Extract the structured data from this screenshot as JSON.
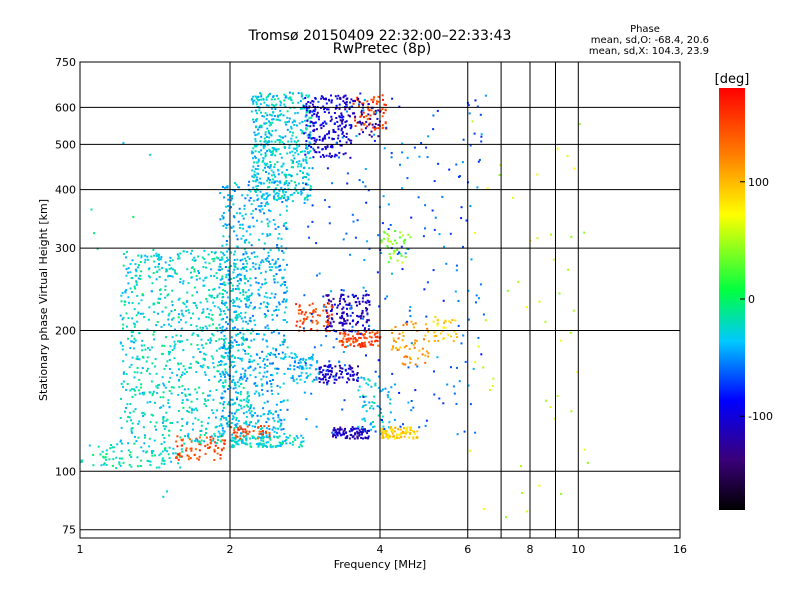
{
  "chart_data": {
    "type": "scatter",
    "title": "Tromsø 20150409 22:32:00–22:33:43",
    "subtitle": "RwPretec (8p)",
    "xlabel": "Frequency [MHz]",
    "ylabel": "Stationary phase Virtual Height [km]",
    "x_scale": "log",
    "y_scale": "log",
    "xlim": [
      1,
      16
    ],
    "ylim": [
      72,
      750
    ],
    "x_ticks": [
      1,
      2,
      4,
      6,
      8,
      10,
      16
    ],
    "x_minor_grid": [
      7,
      9
    ],
    "y_ticks": [
      75,
      100,
      200,
      300,
      400,
      500,
      600,
      750
    ],
    "grid": true,
    "stats": {
      "heading": "Phase",
      "line_o": "mean, sd,O: -68.4, 20.6",
      "line_x": "mean, sd,X: 104.3, 23.9"
    },
    "colorbar": {
      "label": "[deg]",
      "range": [
        -180,
        180
      ],
      "ticks": [
        -100,
        0,
        100
      ],
      "colormap": "rainbow",
      "placement": "right"
    },
    "point_clusters": [
      {
        "x": [
          1.0,
          1.6
        ],
        "y": [
          102,
          115
        ],
        "phase": -20,
        "n": 90
      },
      {
        "x": [
          1.55,
          1.95
        ],
        "y": [
          106,
          120
        ],
        "phase": 150,
        "n": 70
      },
      {
        "x": [
          1.2,
          2.2
        ],
        "y": [
          115,
          300
        ],
        "phase": -25,
        "n": 900
      },
      {
        "x": [
          1.9,
          2.6
        ],
        "y": [
          120,
          420
        ],
        "phase": -40,
        "n": 700
      },
      {
        "x": [
          2.2,
          2.9
        ],
        "y": [
          380,
          650
        ],
        "phase": -30,
        "n": 500
      },
      {
        "x": [
          2.0,
          2.8
        ],
        "y": [
          113,
          120
        ],
        "phase": -25,
        "n": 110
      },
      {
        "x": [
          2.0,
          2.4
        ],
        "y": [
          118,
          126
        ],
        "phase": 150,
        "n": 40
      },
      {
        "x": [
          2.8,
          3.5
        ],
        "y": [
          470,
          640
        ],
        "phase": -100,
        "n": 200
      },
      {
        "x": [
          3.5,
          4.1
        ],
        "y": [
          540,
          640
        ],
        "phase": 150,
        "n": 70
      },
      {
        "x": [
          3.3,
          4.0
        ],
        "y": [
          520,
          630
        ],
        "phase": -120,
        "n": 60
      },
      {
        "x": [
          3.1,
          3.8
        ],
        "y": [
          200,
          240
        ],
        "phase": -110,
        "n": 140
      },
      {
        "x": [
          3.0,
          3.6
        ],
        "y": [
          155,
          170
        ],
        "phase": -110,
        "n": 90
      },
      {
        "x": [
          3.2,
          3.8
        ],
        "y": [
          118,
          125
        ],
        "phase": -110,
        "n": 90
      },
      {
        "x": [
          3.3,
          4.0
        ],
        "y": [
          185,
          200
        ],
        "phase": 150,
        "n": 90
      },
      {
        "x": [
          2.7,
          3.2
        ],
        "y": [
          200,
          230
        ],
        "phase": 150,
        "n": 60
      },
      {
        "x": [
          2.6,
          3.0
        ],
        "y": [
          155,
          180
        ],
        "phase": -40,
        "n": 70
      },
      {
        "x": [
          3.6,
          4.2
        ],
        "y": [
          120,
          160
        ],
        "phase": -30,
        "n": 60
      },
      {
        "x": [
          4.0,
          4.8
        ],
        "y": [
          118,
          125
        ],
        "phase": 90,
        "n": 80
      },
      {
        "x": [
          4.2,
          5.0
        ],
        "y": [
          170,
          210
        ],
        "phase": 110,
        "n": 60
      },
      {
        "x": [
          5.0,
          5.7
        ],
        "y": [
          190,
          215
        ],
        "phase": 90,
        "n": 30
      },
      {
        "x": [
          4.0,
          4.6
        ],
        "y": [
          280,
          330
        ],
        "phase": 40,
        "n": 40
      },
      {
        "x": [
          2.8,
          6.5
        ],
        "y": [
          120,
          650
        ],
        "phase": -60,
        "n": 260
      },
      {
        "x": [
          6.0,
          10.5
        ],
        "y": [
          80,
          600
        ],
        "phase": 60,
        "n": 50
      },
      {
        "x": [
          1.0,
          1.5
        ],
        "y": [
          80,
          620
        ],
        "phase": -20,
        "n": 12
      }
    ]
  }
}
